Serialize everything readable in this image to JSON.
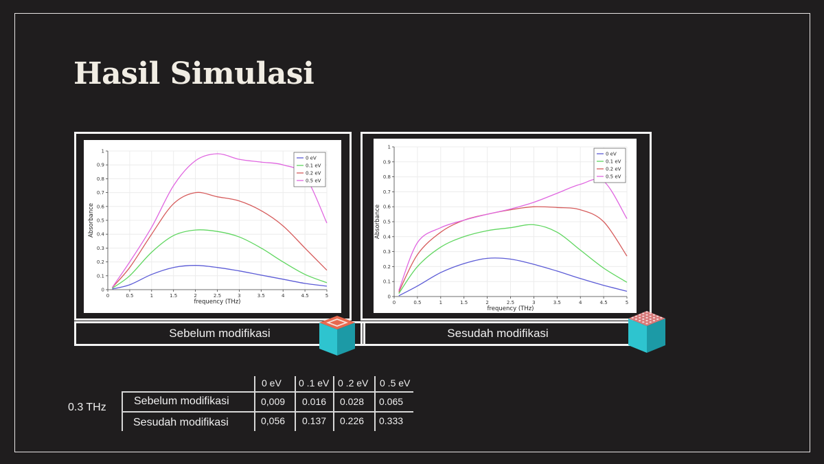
{
  "slide": {
    "title": "Hasil Simulasi"
  },
  "captions": {
    "before": "Sebelum modifikasi",
    "after": "Sesudah modifikasi"
  },
  "chart_data": [
    {
      "type": "line",
      "xlabel": "frequency (THz)",
      "ylabel": "Absorbance",
      "xlim": [
        0,
        5
      ],
      "ylim": [
        0,
        1
      ],
      "xticks": [
        "0",
        "0.5",
        "1",
        "1.5",
        "2",
        "2.5",
        "3",
        "3.5",
        "4",
        "4.5",
        "5"
      ],
      "yticks": [
        "0",
        "0.1",
        "0.2",
        "0.3",
        "0.4",
        "0.5",
        "0.6",
        "0.7",
        "0.8",
        "0.9",
        "1"
      ],
      "grid": true,
      "legend": "top-right",
      "x": [
        0.1,
        0.5,
        1,
        1.5,
        2,
        2.5,
        3,
        3.5,
        4,
        4.5,
        5
      ],
      "series": [
        {
          "name": "0 eV",
          "color": "#5b5bd6",
          "values": [
            0.005,
            0.035,
            0.11,
            0.16,
            0.175,
            0.16,
            0.135,
            0.105,
            0.075,
            0.045,
            0.025
          ]
        },
        {
          "name": "0.1 eV",
          "color": "#5fd65f",
          "values": [
            0.01,
            0.1,
            0.27,
            0.39,
            0.43,
            0.42,
            0.38,
            0.3,
            0.2,
            0.11,
            0.05
          ]
        },
        {
          "name": "0.2 eV",
          "color": "#d65b5b",
          "values": [
            0.015,
            0.16,
            0.4,
            0.62,
            0.7,
            0.67,
            0.64,
            0.57,
            0.46,
            0.3,
            0.14
          ]
        },
        {
          "name": "0.5 eV",
          "color": "#e066e0",
          "values": [
            0.015,
            0.2,
            0.45,
            0.75,
            0.93,
            0.98,
            0.94,
            0.92,
            0.9,
            0.82,
            0.48
          ]
        }
      ]
    },
    {
      "type": "line",
      "xlabel": "frequency (THz)",
      "ylabel": "Absorbance",
      "xlim": [
        0,
        5
      ],
      "ylim": [
        0,
        1
      ],
      "xticks": [
        "0",
        "0.5",
        "1",
        "1.5",
        "2",
        "2.5",
        "3",
        "3.5",
        "4",
        "4.5",
        "5"
      ],
      "yticks": [
        "0",
        "0.1",
        "0.2",
        "0.3",
        "0.4",
        "0.5",
        "0.6",
        "0.7",
        "0.8",
        "0.9",
        "1"
      ],
      "grid": true,
      "legend": "top-right",
      "x": [
        0.1,
        0.5,
        1,
        1.5,
        2,
        2.5,
        3,
        3.5,
        4,
        4.5,
        5
      ],
      "series": [
        {
          "name": "0 eV",
          "color": "#5b5bd6",
          "values": [
            0.005,
            0.07,
            0.16,
            0.22,
            0.255,
            0.25,
            0.215,
            0.17,
            0.12,
            0.075,
            0.035
          ]
        },
        {
          "name": "0.1 eV",
          "color": "#5fd65f",
          "values": [
            0.02,
            0.2,
            0.33,
            0.4,
            0.44,
            0.46,
            0.48,
            0.43,
            0.31,
            0.19,
            0.095
          ]
        },
        {
          "name": "0.2 eV",
          "color": "#d65b5b",
          "values": [
            0.03,
            0.28,
            0.43,
            0.51,
            0.55,
            0.58,
            0.6,
            0.595,
            0.58,
            0.5,
            0.27
          ]
        },
        {
          "name": "0.5 eV",
          "color": "#e066e0",
          "values": [
            0.04,
            0.36,
            0.46,
            0.51,
            0.55,
            0.585,
            0.63,
            0.69,
            0.75,
            0.77,
            0.52
          ]
        }
      ]
    }
  ],
  "table": {
    "freq_label": "0.3 THz",
    "headers": [
      "0 eV",
      "0 .1 eV",
      "0 .2 eV",
      "0 .5 eV"
    ],
    "rows": [
      {
        "label": "Sebelum modifikasi",
        "values": [
          "0,009",
          "0.016",
          "0.028",
          "0.065"
        ]
      },
      {
        "label": "Sesudah modifikasi",
        "values": [
          "0,056",
          "0.137",
          "0.226",
          "0.333"
        ]
      }
    ]
  }
}
